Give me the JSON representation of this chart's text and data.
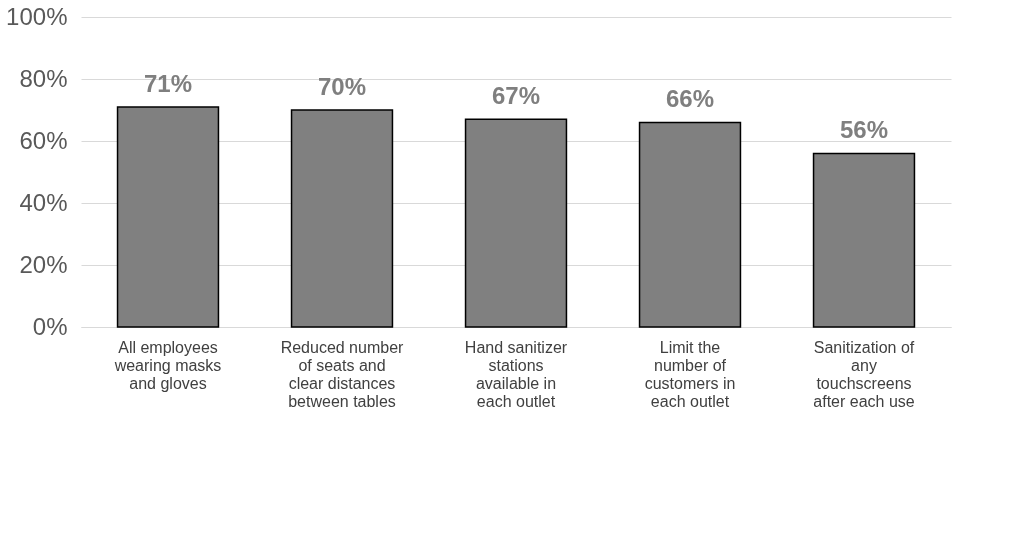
{
  "chart_data": {
    "type": "bar",
    "categories": [
      "All employees wearing masks and gloves",
      "Reduced number of seats and clear distances between tables",
      "Hand sanitizer stations available in each outlet",
      "Limit the number of customers in each outlet",
      "Sanitization of any touchscreens after each use"
    ],
    "values": [
      71,
      70,
      67,
      66,
      56
    ],
    "value_labels": [
      "71%",
      "70%",
      "67%",
      "66%",
      "56%"
    ],
    "color": "#808080",
    "ylim": [
      0,
      100
    ],
    "yticks": [
      {
        "value": 0,
        "label": "0%"
      },
      {
        "value": 20,
        "label": "20%"
      },
      {
        "value": 40,
        "label": "40%"
      },
      {
        "value": 60,
        "label": "60%"
      },
      {
        "value": 80,
        "label": "80%"
      },
      {
        "value": 100,
        "label": "100%"
      }
    ],
    "grid": "y"
  }
}
